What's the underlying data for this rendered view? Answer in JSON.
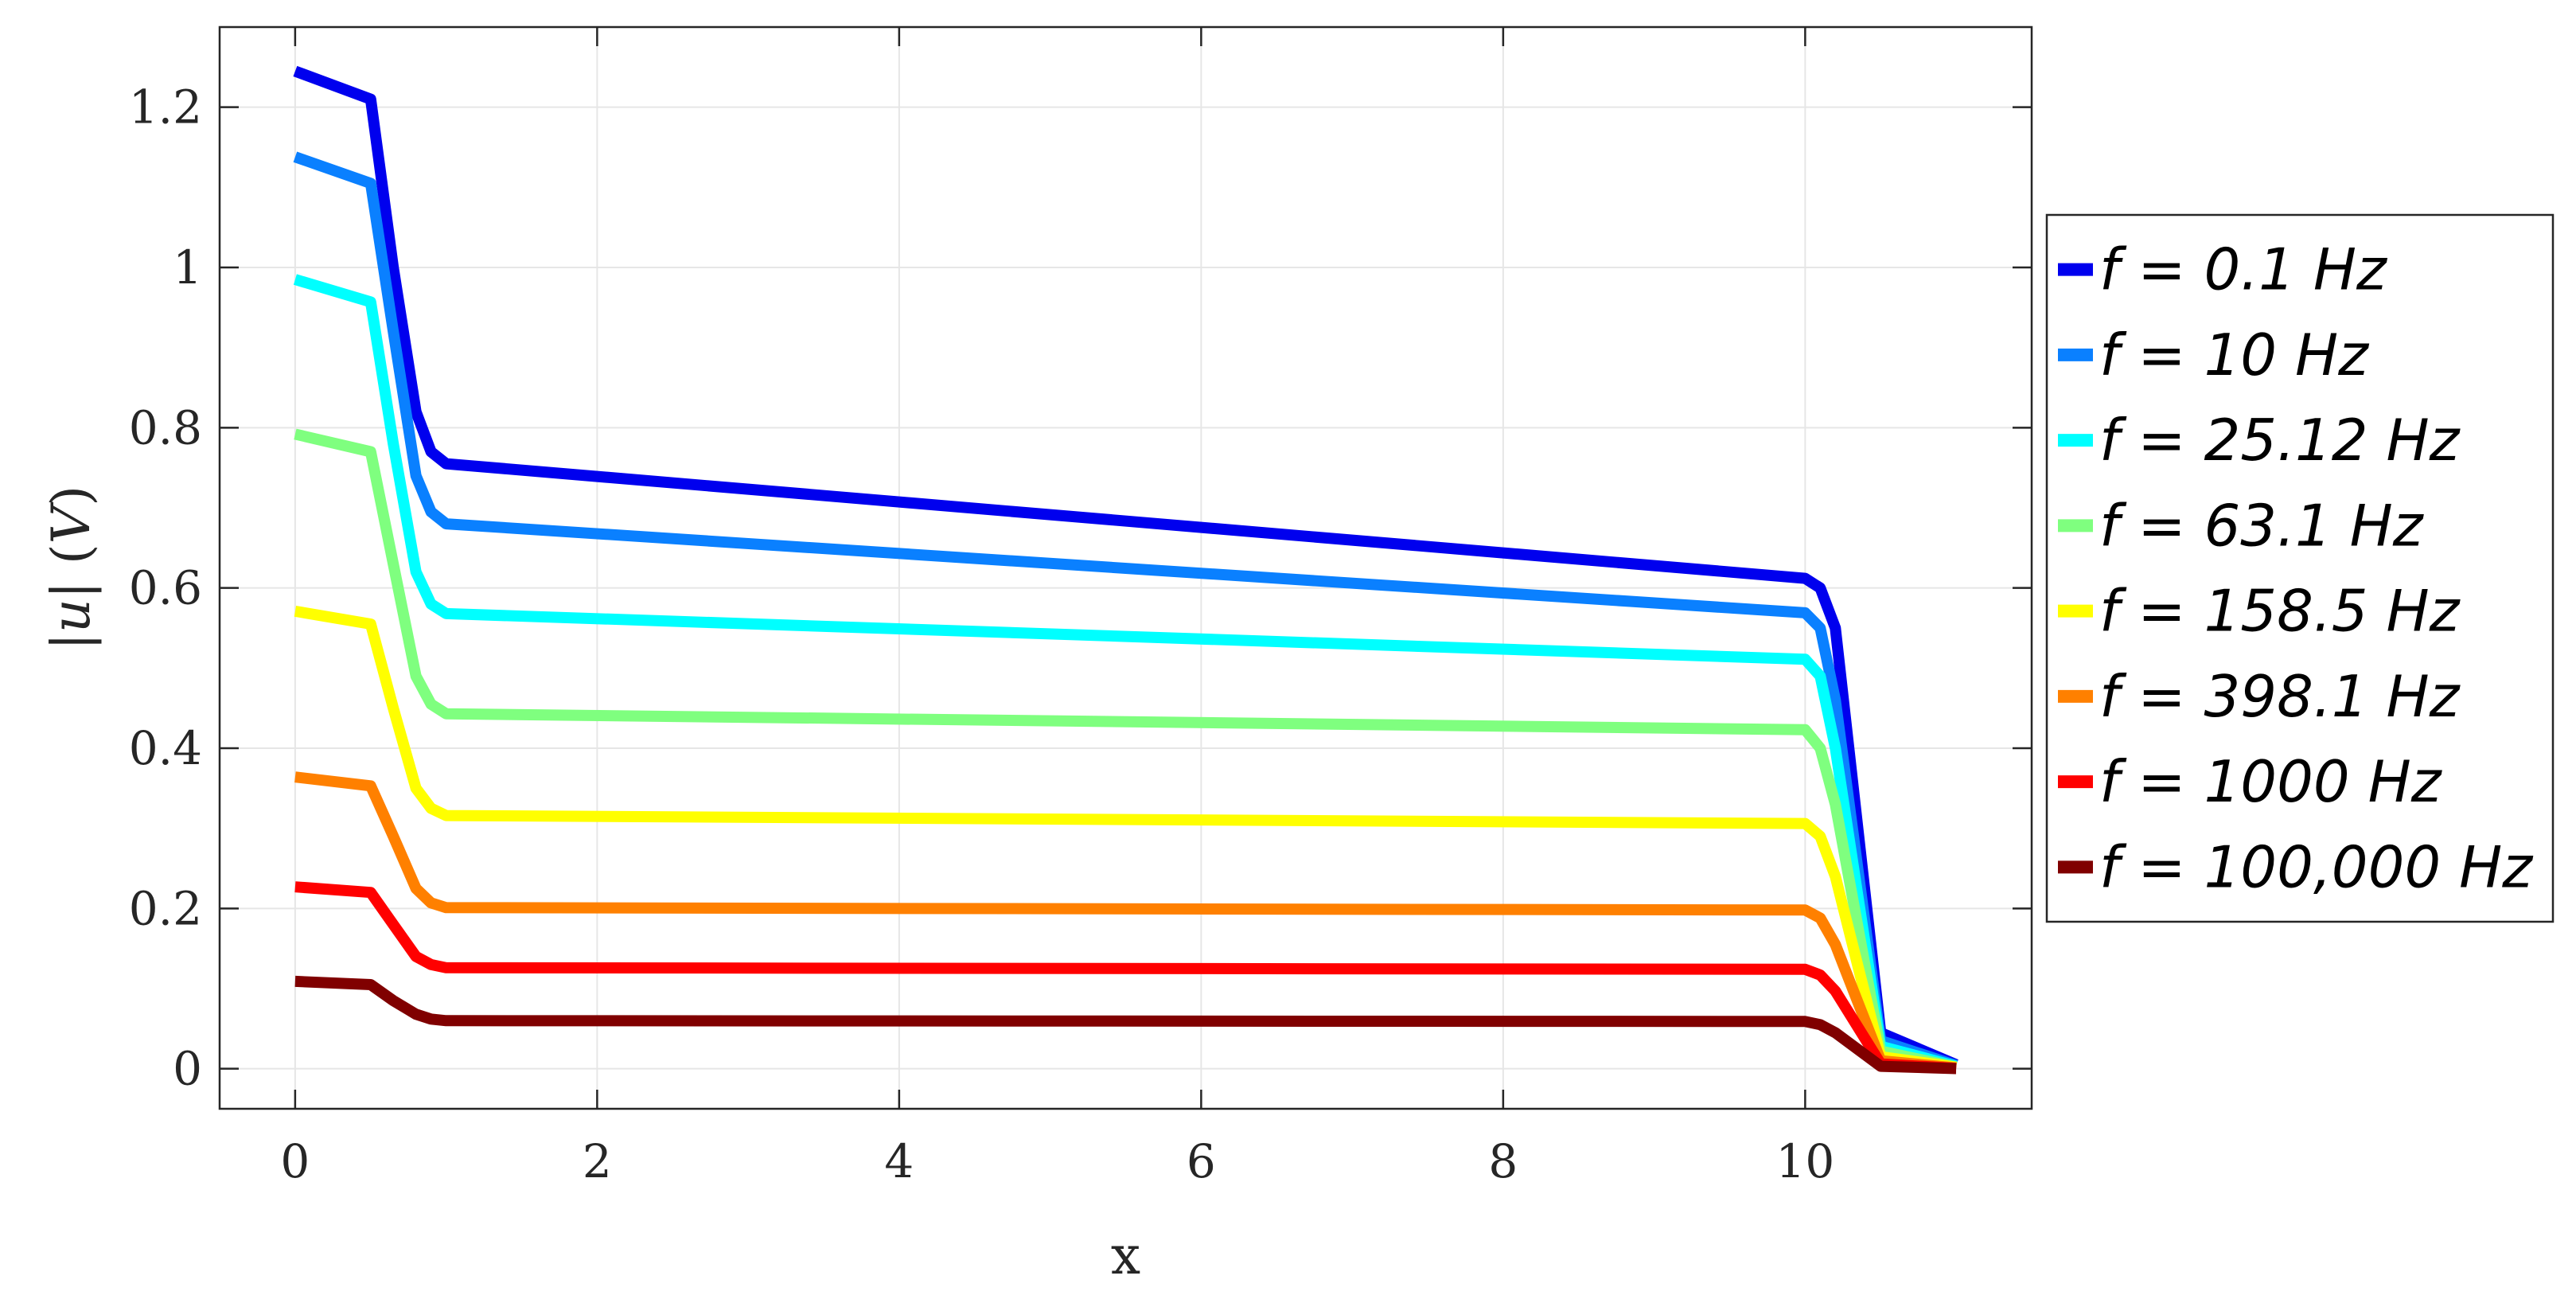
{
  "chart_data": {
    "type": "line",
    "xlabel": "x",
    "ylabel_parts": [
      "|",
      "u",
      "|",
      " (",
      "V",
      ")"
    ],
    "xlim": [
      -0.5,
      11.5
    ],
    "ylim": [
      -0.05,
      1.3
    ],
    "xticks": [
      0,
      2,
      4,
      6,
      8,
      10
    ],
    "xtick_labels": [
      "0",
      "2",
      "4",
      "6",
      "8",
      "10"
    ],
    "yticks": [
      0,
      0.2,
      0.4,
      0.6,
      0.8,
      1,
      1.2
    ],
    "ytick_labels": [
      "0",
      "0.2",
      "0.4",
      "0.6",
      "0.8",
      "1",
      "1.2"
    ],
    "grid": true,
    "legend_position": "outside-right",
    "x": [
      0,
      0.5,
      0.65,
      0.8,
      0.9,
      1.0,
      10.0,
      10.1,
      10.2,
      10.5,
      11.0
    ],
    "series": [
      {
        "name": "f = 0.1 Hz",
        "color": "#0000ee",
        "values": [
          1.245,
          1.21,
          1.0,
          0.82,
          0.77,
          0.755,
          0.612,
          0.6,
          0.55,
          0.045,
          0.005
        ]
      },
      {
        "name": "f = 10 Hz",
        "color": "#0a80ff",
        "values": [
          1.138,
          1.105,
          0.92,
          0.74,
          0.695,
          0.68,
          0.569,
          0.55,
          0.46,
          0.035,
          0.004
        ]
      },
      {
        "name": "f = 25.12 Hz",
        "color": "#00ffff",
        "values": [
          0.985,
          0.957,
          0.78,
          0.62,
          0.58,
          0.568,
          0.511,
          0.49,
          0.4,
          0.028,
          0.003
        ]
      },
      {
        "name": "f = 63.1 Hz",
        "color": "#7fff7f",
        "values": [
          0.792,
          0.77,
          0.63,
          0.49,
          0.455,
          0.443,
          0.423,
          0.4,
          0.33,
          0.022,
          0.002
        ]
      },
      {
        "name": "f = 158.5 Hz",
        "color": "#ffff00",
        "values": [
          0.571,
          0.555,
          0.45,
          0.35,
          0.325,
          0.316,
          0.306,
          0.29,
          0.24,
          0.015,
          0.002
        ]
      },
      {
        "name": "f = 398.1 Hz",
        "color": "#ff8000",
        "values": [
          0.364,
          0.353,
          0.29,
          0.225,
          0.207,
          0.201,
          0.198,
          0.188,
          0.155,
          0.01,
          0.001
        ]
      },
      {
        "name": "f = 1000 Hz",
        "color": "#ff0000",
        "values": [
          0.227,
          0.22,
          0.18,
          0.14,
          0.13,
          0.126,
          0.124,
          0.117,
          0.097,
          0.006,
          0.0005
        ]
      },
      {
        "name": "f = 100,000 Hz",
        "color": "#800000",
        "values": [
          0.109,
          0.105,
          0.085,
          0.068,
          0.062,
          0.06,
          0.059,
          0.055,
          0.045,
          0.003,
          0.0002
        ]
      }
    ]
  }
}
